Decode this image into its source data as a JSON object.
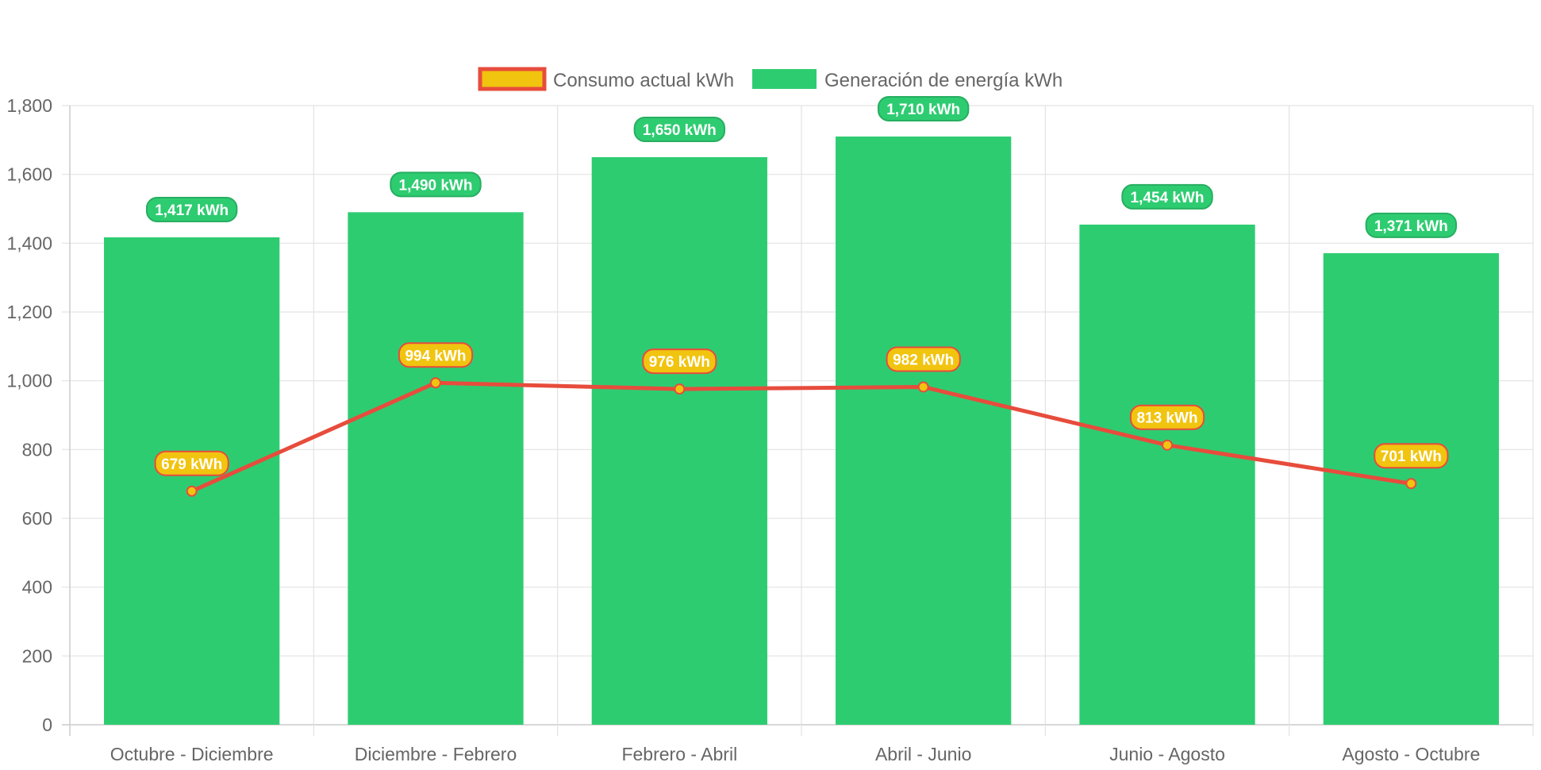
{
  "chart_data": {
    "type": "bar",
    "categories": [
      "Octubre - Diciembre",
      "Diciembre - Febrero",
      "Febrero - Abril",
      "Abril - Junio",
      "Junio - Agosto",
      "Agosto - Octubre"
    ],
    "series": [
      {
        "name": "Consumo actual kWh",
        "type": "line",
        "values": [
          679,
          994,
          976,
          982,
          813,
          701
        ],
        "labels": [
          "679 kWh",
          "994 kWh",
          "976 kWh",
          "982 kWh",
          "813 kWh",
          "701 kWh"
        ],
        "color": "#e74c3c",
        "fill_color": "#f1c40f"
      },
      {
        "name": "Generación de energía kWh",
        "type": "bar",
        "values": [
          1417,
          1490,
          1650,
          1710,
          1454,
          1371
        ],
        "labels": [
          "1,417 kWh",
          "1,490 kWh",
          "1,650 kWh",
          "1,710 kWh",
          "1,454 kWh",
          "1,371 kWh"
        ],
        "color": "#2ecc71",
        "label_border_color": "#27ae60"
      }
    ],
    "y_ticks": [
      "0",
      "200",
      "400",
      "600",
      "800",
      "1,000",
      "1,200",
      "1,400",
      "1,600",
      "1,800"
    ],
    "ylim": [
      0,
      1800
    ],
    "grid": true,
    "legend_position": "top"
  }
}
